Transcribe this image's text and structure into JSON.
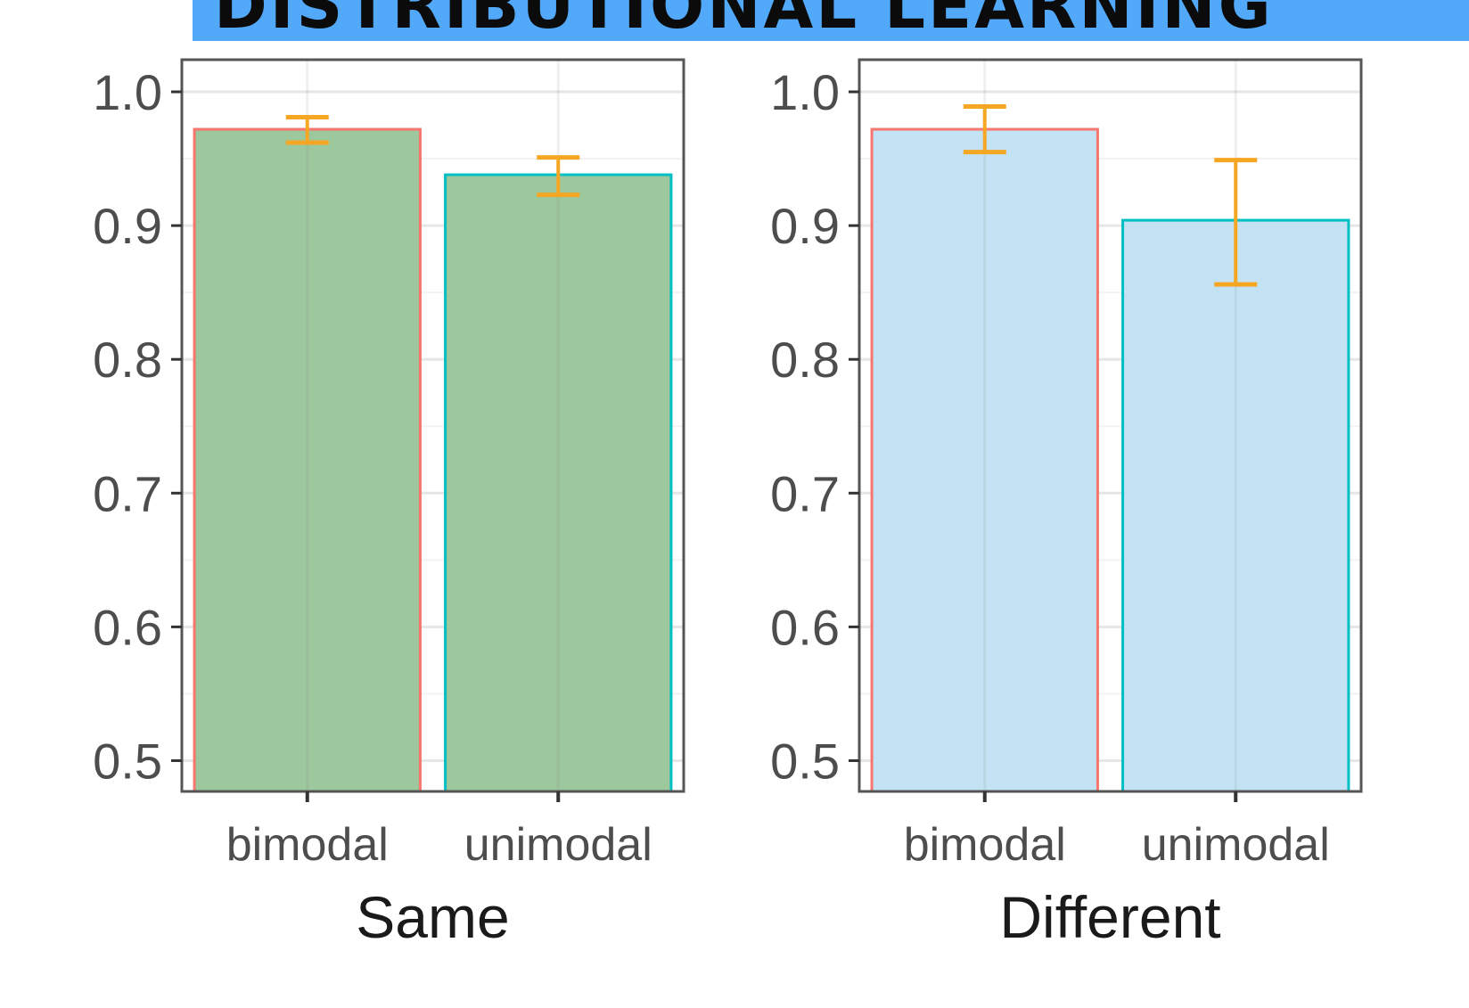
{
  "banner": {
    "text": "DISTRIBUTIONAL LEARNING",
    "color": "#52a8f9"
  },
  "chart_data": [
    {
      "type": "bar",
      "xlabel": "Same",
      "ylabel": "",
      "categories": [
        "bimodal",
        "unimodal"
      ],
      "values": [
        0.972,
        0.938
      ],
      "error_low": [
        0.962,
        0.923
      ],
      "error_high": [
        0.981,
        0.951
      ],
      "ylim": [
        0.477,
        1.024
      ],
      "yticks": [
        "0.5",
        "0.6",
        "0.7",
        "0.8",
        "0.9",
        "1.0"
      ],
      "fill_color": "#9dc79d",
      "border_colors": [
        "#f8766d",
        "#00bfc4"
      ],
      "errorbar_color": "#f5a623",
      "grid": true
    },
    {
      "type": "bar",
      "xlabel": "Different",
      "ylabel": "",
      "categories": [
        "bimodal",
        "unimodal"
      ],
      "values": [
        0.972,
        0.904
      ],
      "error_low": [
        0.955,
        0.856
      ],
      "error_high": [
        0.989,
        0.949
      ],
      "ylim": [
        0.477,
        1.024
      ],
      "yticks": [
        "0.5",
        "0.6",
        "0.7",
        "0.8",
        "0.9",
        "1.0"
      ],
      "fill_color": "#c3e3f4",
      "border_colors": [
        "#f8766d",
        "#00bfc4"
      ],
      "errorbar_color": "#f5a623",
      "grid": true
    }
  ]
}
